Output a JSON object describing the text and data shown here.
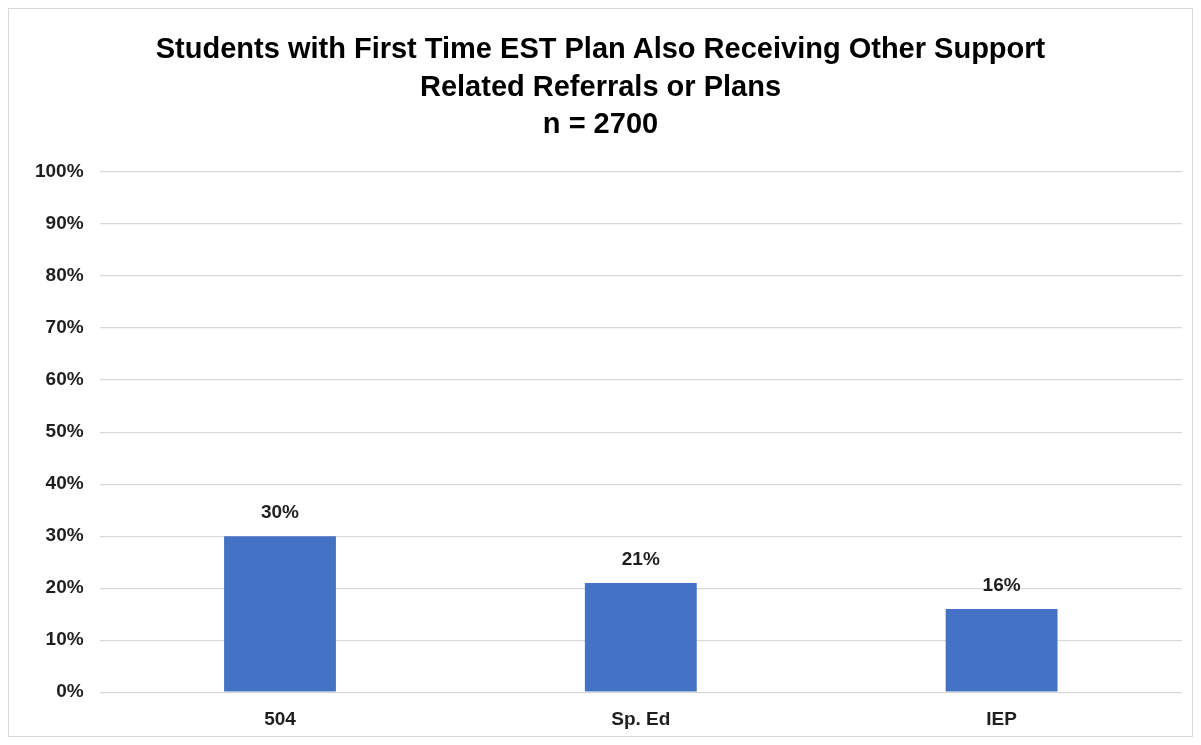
{
  "chart_data": {
    "type": "bar",
    "title": "Students with First Time EST Plan Also Receiving Other Support Related Referrals or Plans",
    "subtitle": "n = 2700",
    "categories": [
      "504",
      "Sp. Ed",
      "IEP"
    ],
    "values": [
      30,
      21,
      16
    ],
    "color": "#4472c4",
    "value_labels": [
      "30%",
      "21%",
      "16%"
    ],
    "ylim": [
      0,
      100
    ],
    "yticks": [
      {
        "value": 0,
        "label": "0%"
      },
      {
        "value": 10,
        "label": "10%"
      },
      {
        "value": 20,
        "label": "20%"
      },
      {
        "value": 30,
        "label": "30%"
      },
      {
        "value": 40,
        "label": "40%"
      },
      {
        "value": 50,
        "label": "50%"
      },
      {
        "value": 60,
        "label": "60%"
      },
      {
        "value": 70,
        "label": "70%"
      },
      {
        "value": 80,
        "label": "80%"
      },
      {
        "value": 90,
        "label": "90%"
      },
      {
        "value": 100,
        "label": "100%"
      }
    ],
    "grid": "y"
  }
}
